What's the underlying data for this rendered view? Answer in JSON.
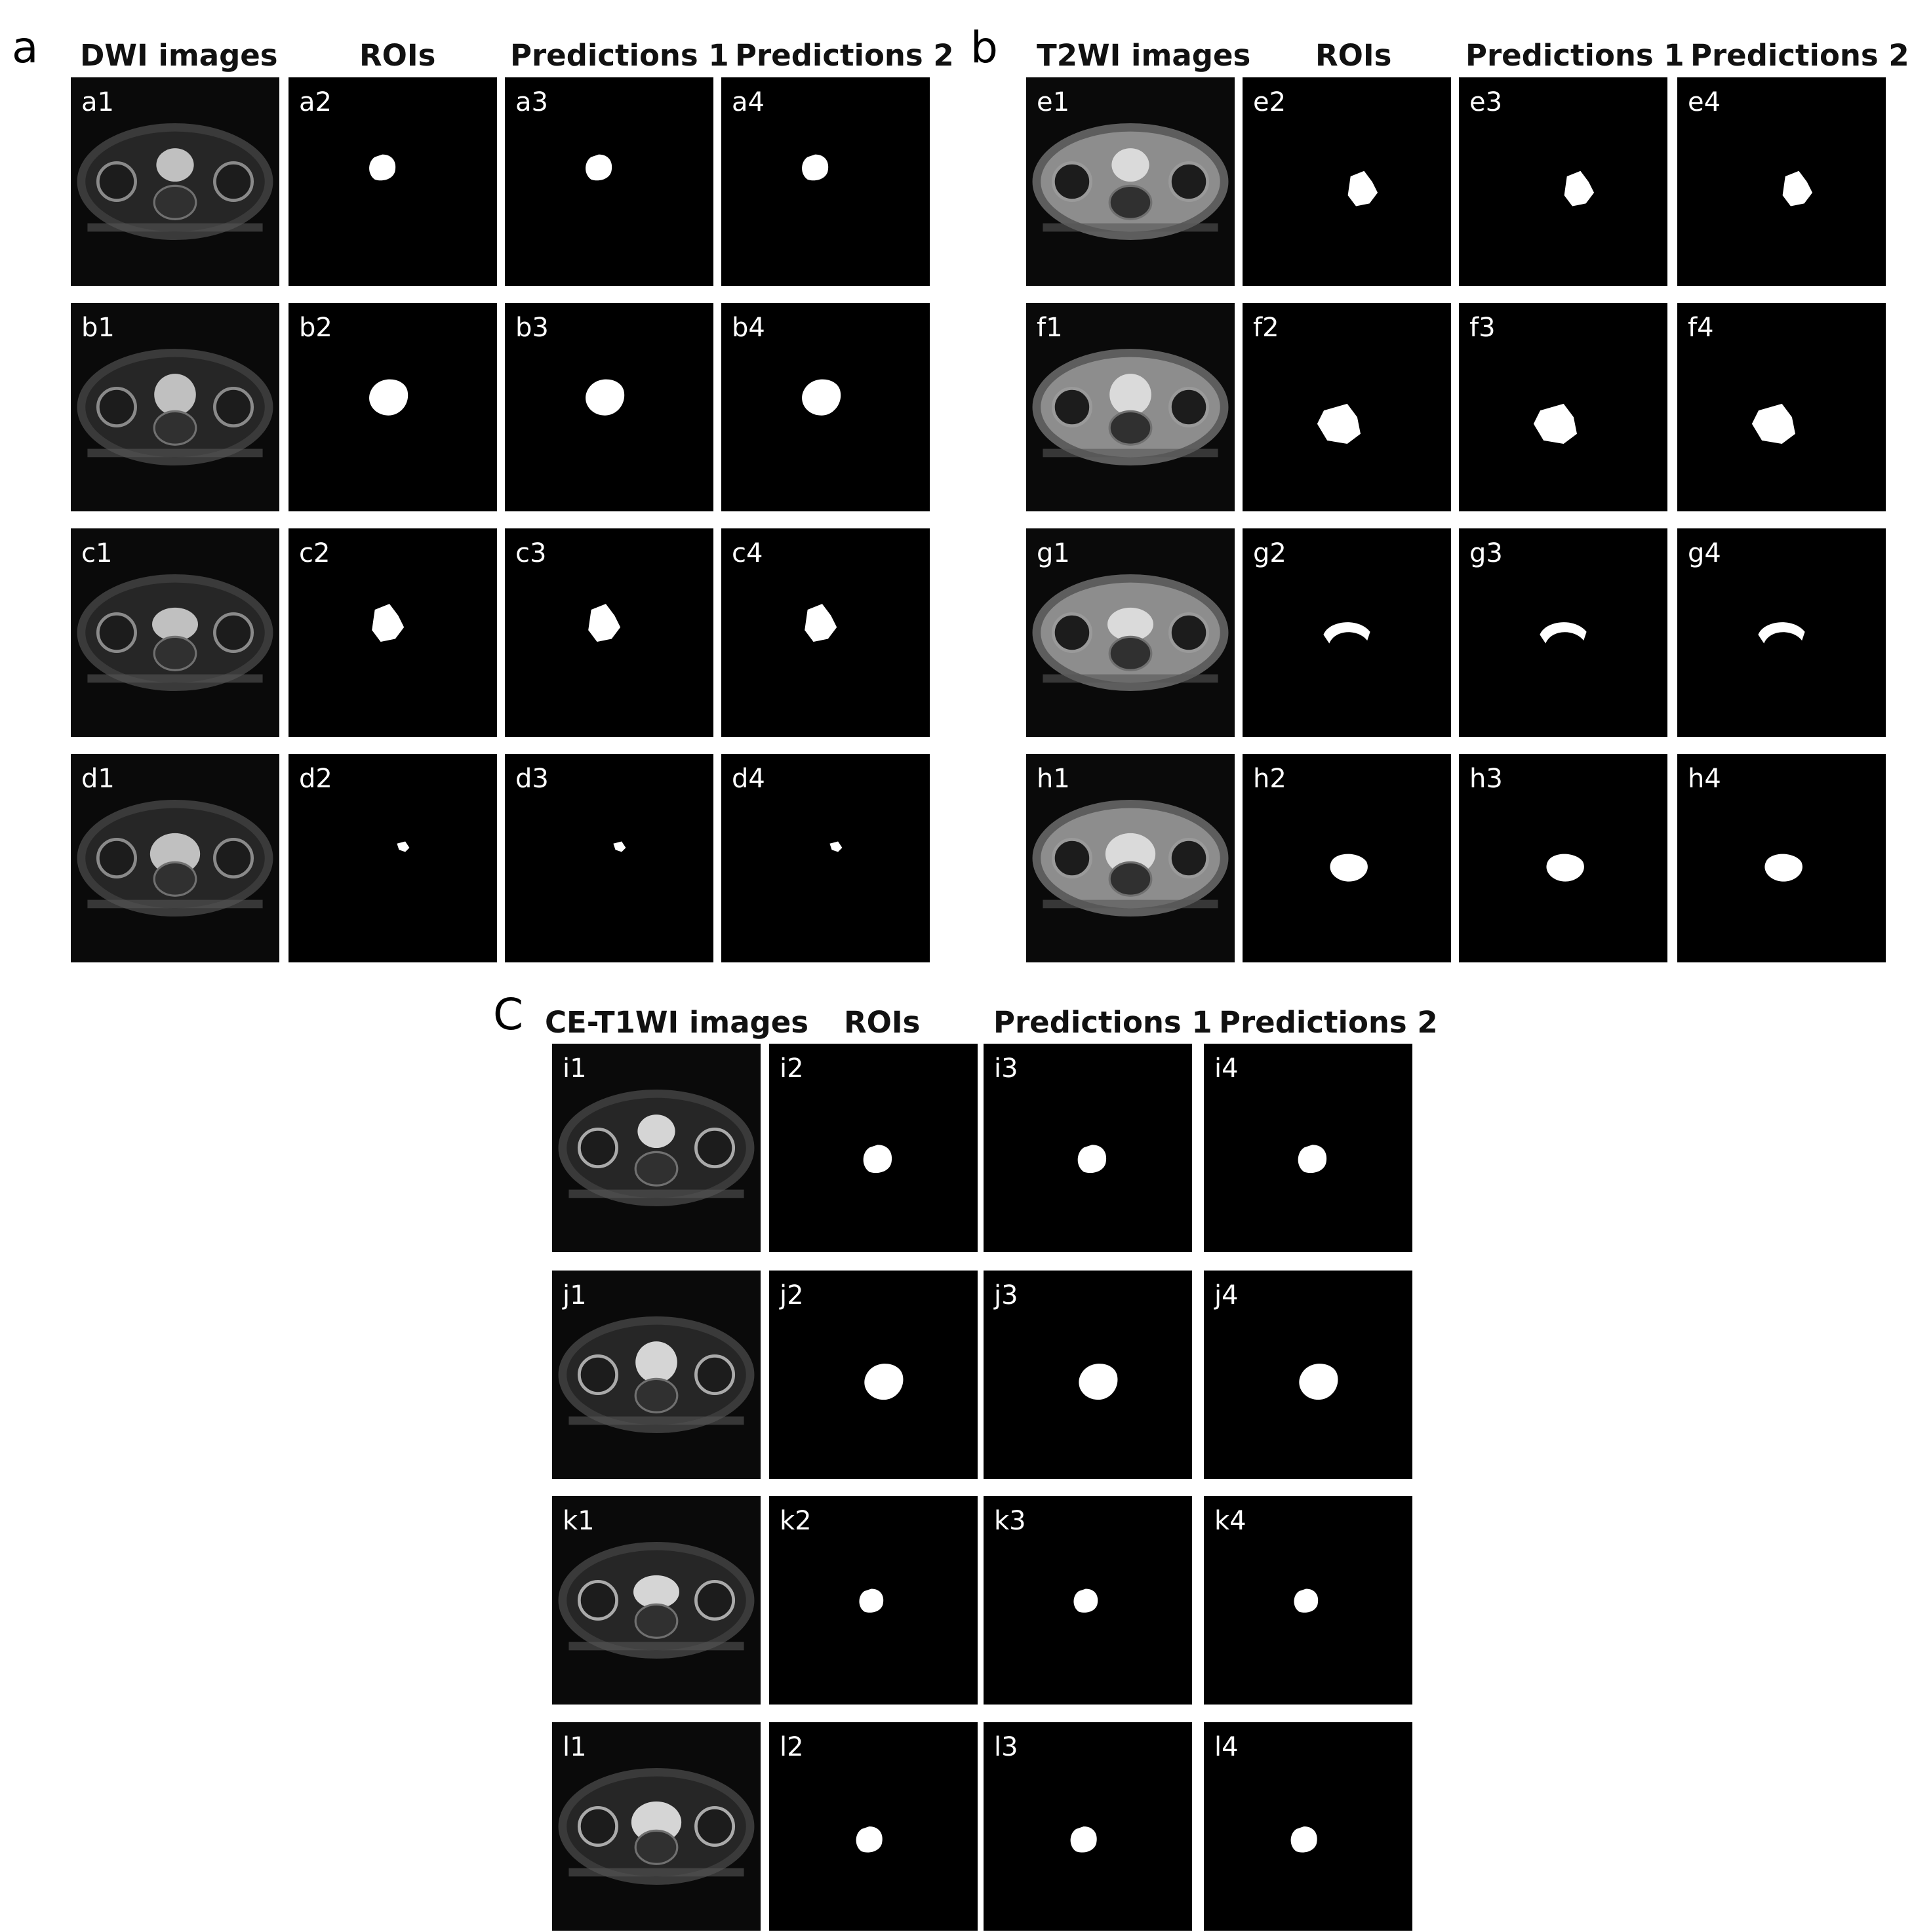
{
  "panels": [
    {
      "letter": "a",
      "headers": [
        "DWI images",
        "ROIs",
        "Predictions 1",
        "Predictions 2"
      ],
      "rows": [
        [
          "a1",
          "a2",
          "a3",
          "a4"
        ],
        [
          "b1",
          "b2",
          "b3",
          "b4"
        ],
        [
          "c1",
          "c2",
          "c3",
          "c4"
        ],
        [
          "d1",
          "d2",
          "d3",
          "d4"
        ]
      ]
    },
    {
      "letter": "b",
      "headers": [
        "T2WI images",
        "ROIs",
        "Predictions 1",
        "Predictions 2"
      ],
      "rows": [
        [
          "e1",
          "e2",
          "e3",
          "e4"
        ],
        [
          "f1",
          "f2",
          "f3",
          "f4"
        ],
        [
          "g1",
          "g2",
          "g3",
          "g4"
        ],
        [
          "h1",
          "h2",
          "h3",
          "h4"
        ]
      ]
    },
    {
      "letter": "C",
      "headers": [
        "CE-T1WI images",
        "ROIs",
        "Predictions 1",
        "Predictions 2"
      ],
      "rows": [
        [
          "i1",
          "i2",
          "i3",
          "i4"
        ],
        [
          "j1",
          "j2",
          "j3",
          "j4"
        ],
        [
          "k1",
          "k2",
          "k3",
          "k4"
        ],
        [
          "l1",
          "l2",
          "l3",
          "l4"
        ]
      ]
    }
  ]
}
